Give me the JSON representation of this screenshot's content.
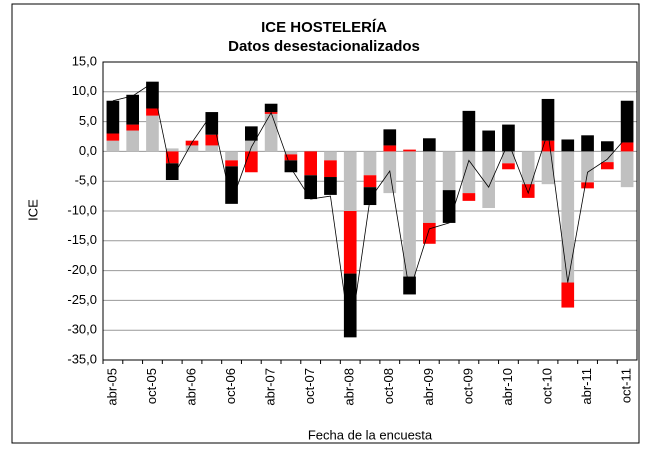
{
  "chart_data": {
    "type": "bar",
    "stacked": true,
    "title": "ICE HOSTELERÍA",
    "subtitle": "Datos desestacionalizados",
    "y_label": "ICE",
    "x_label": "Fecha de la encuesta",
    "categories": [
      "abr-05",
      null,
      "oct-05",
      null,
      "abr-06",
      null,
      "oct-06",
      null,
      "abr-07",
      null,
      "oct-07",
      null,
      "abr-08",
      null,
      "oct-08",
      null,
      "abr-09",
      null,
      "oct-09",
      null,
      "abr-10",
      null,
      "oct-10",
      null,
      "abr-11",
      null,
      "oct-11"
    ],
    "series": [
      {
        "type": "bar",
        "color": "#c0c0c0",
        "values": [
          1.8,
          3.5,
          6,
          0.5,
          1,
          1,
          -1.5,
          1.8,
          6.3,
          -0.5,
          0,
          -1.5,
          -10,
          -4,
          -7,
          -21,
          -12,
          -6.5,
          -7,
          -9.5,
          -2,
          -5.5,
          -5.5,
          -22,
          -5.2,
          -1.8,
          -6
        ]
      },
      {
        "type": "bar",
        "color": "#ff0000",
        "values": [
          1.2,
          1,
          1.2,
          -2,
          0.8,
          1.8,
          -1,
          -3.5,
          0.3,
          -1,
          -4,
          -2.8,
          -10.5,
          -2,
          1,
          0.3,
          -3.5,
          0,
          -1.3,
          0,
          -1,
          -2.3,
          1.8,
          -4.2,
          -1,
          -1.2,
          1.5
        ]
      },
      {
        "type": "bar",
        "color": "#000000",
        "values": [
          5.5,
          5,
          4.5,
          -2.8,
          0,
          3.8,
          -6.3,
          2.4,
          1.4,
          -2,
          -4,
          -3,
          -10.7,
          -3,
          2.7,
          -3,
          2.2,
          -5.5,
          6.8,
          3.5,
          4.5,
          0,
          7,
          2,
          2.7,
          1.7,
          7
        ]
      },
      {
        "type": "line",
        "color": "#000000",
        "values": [
          8.5,
          9.3,
          11.5,
          -4.5,
          1.5,
          6.3,
          -8.5,
          0.7,
          6.5,
          -2.8,
          -8,
          -7.5,
          -31,
          -8,
          -3.3,
          -23.5,
          -13,
          -12,
          -1.5,
          -6,
          1.5,
          -7,
          3.3,
          -22,
          -3.5,
          -1.3,
          2.5
        ]
      }
    ],
    "ylim": [
      -35,
      15
    ],
    "yticks": [
      {
        "value": -35,
        "label": "-35,0"
      },
      {
        "value": -30,
        "label": "-30,0"
      },
      {
        "value": -25,
        "label": "-25,0"
      },
      {
        "value": -20,
        "label": "-20,0"
      },
      {
        "value": -15,
        "label": "-15,0"
      },
      {
        "value": -10,
        "label": "-10,0"
      },
      {
        "value": -5,
        "label": "-5,0"
      },
      {
        "value": 0,
        "label": "0,0"
      },
      {
        "value": 5,
        "label": "5,0"
      },
      {
        "value": 10,
        "label": "10,0"
      },
      {
        "value": 15,
        "label": "15,0"
      }
    ],
    "grid": true
  }
}
